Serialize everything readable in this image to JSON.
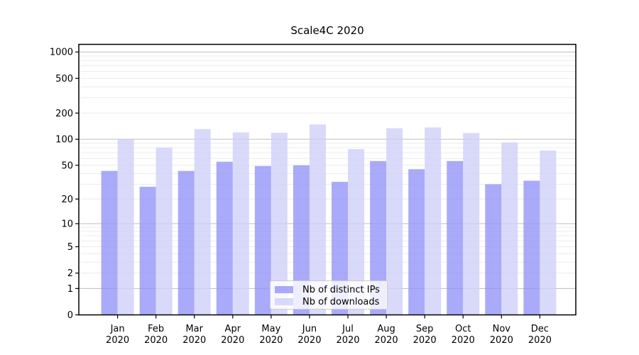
{
  "chart_data": {
    "type": "bar",
    "title": "Scale4C 2020",
    "categories": [
      "Jan 2020",
      "Feb 2020",
      "Mar 2020",
      "Apr 2020",
      "May 2020",
      "Jun 2020",
      "Jul 2020",
      "Aug 2020",
      "Sep 2020",
      "Oct 2020",
      "Nov 2020",
      "Dec 2020"
    ],
    "series": [
      {
        "name": "Nb of distinct IPs",
        "color": "#9595f9",
        "alpha": 0.8,
        "values": [
          43,
          28,
          43,
          55,
          49,
          50,
          32,
          56,
          45,
          56,
          30,
          33
        ]
      },
      {
        "name": "Nb of downloads",
        "color": "#d0d0f9",
        "alpha": 0.8,
        "values": [
          100,
          80,
          131,
          120,
          119,
          148,
          77,
          134,
          137,
          118,
          92,
          74
        ]
      }
    ],
    "yscale": "log10(1+x)",
    "yticks": [
      0,
      1,
      2,
      5,
      10,
      20,
      50,
      100,
      200,
      500,
      1000
    ],
    "ytick_labels": [
      "0",
      "1",
      "2",
      "5",
      "10",
      "20",
      "50",
      "100",
      "200",
      "500",
      "1000"
    ],
    "ylim": [
      0,
      1220
    ],
    "grid": {
      "major_lines": [
        1,
        10,
        100,
        1000
      ],
      "major_color": "#bdbdbd",
      "minor_color": "#ececec",
      "minor_rule": "2-9 within each decade (2..9, 20..90, 200..900)"
    },
    "legend": {
      "position": "lower center",
      "entries": [
        "Nb of distinct IPs",
        "Nb of downloads"
      ]
    },
    "axis_color": "#000000",
    "background_color": "#ffffff"
  }
}
